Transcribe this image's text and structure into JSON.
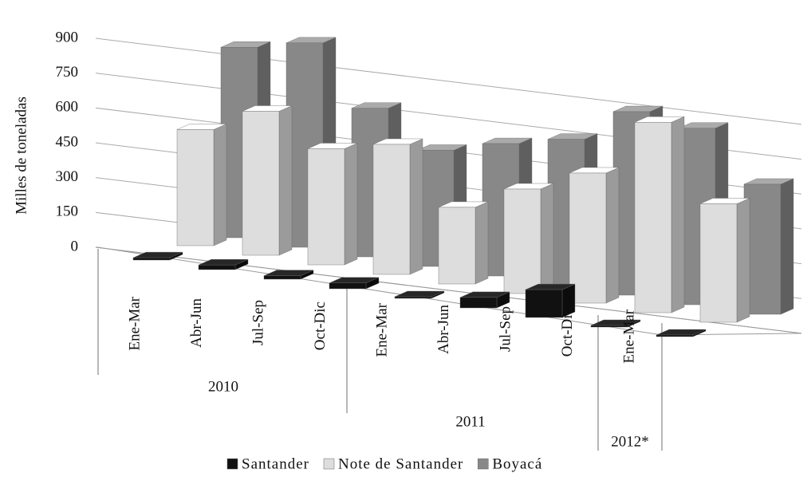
{
  "chart_data": {
    "type": "bar3d",
    "y_label": "Milles de toneladas",
    "categories": [
      "Ene-Mar",
      "Abr-Jun",
      "Jul-Sep",
      "Oct-Dic",
      "Ene-Mar",
      "Abr-Jun",
      "Jul-Sep",
      "Oct-Dic",
      "Ene-Mar"
    ],
    "groups": [
      "2010",
      "2011",
      "2012*"
    ],
    "series": [
      {
        "name": "Santander",
        "color": "#111111",
        "values": [
          10,
          20,
          15,
          25,
          5,
          45,
          120,
          5,
          5
        ]
      },
      {
        "name": "Note de Santander",
        "color": "#dddddd",
        "values": [
          500,
          620,
          500,
          560,
          330,
          450,
          560,
          820,
          510
        ]
      },
      {
        "name": "Boyacá",
        "color": "#888888",
        "values": [
          820,
          880,
          640,
          500,
          570,
          630,
          790,
          760,
          560
        ]
      }
    ],
    "ylim": [
      0,
      900
    ],
    "yticks": [
      0,
      150,
      300,
      450,
      600,
      750,
      900
    ],
    "grid": true
  }
}
